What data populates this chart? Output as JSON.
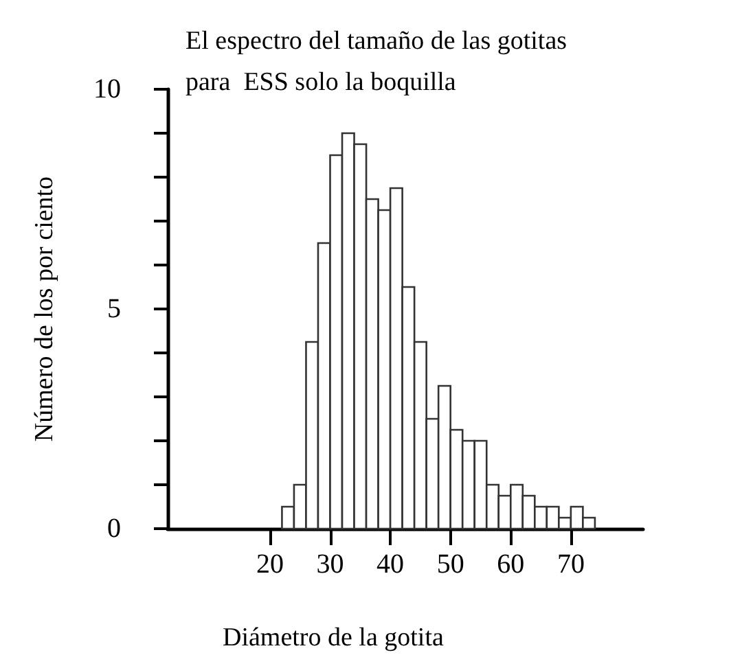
{
  "chart_data": {
    "type": "histogram",
    "title": "El espectro del tamaño de las gotitas\npara  ESS solo la boquilla",
    "xlabel": "Diámetro de la gotita",
    "ylabel": "Número de los por ciento",
    "bins": [
      22,
      24,
      26,
      28,
      30,
      32,
      34,
      36,
      38,
      40,
      42,
      44,
      46,
      48,
      50,
      52,
      54,
      56,
      58,
      60,
      62,
      64,
      66,
      68,
      70,
      72,
      74
    ],
    "values": [
      0.5,
      1,
      4.25,
      6.5,
      8.5,
      9,
      8.75,
      7.5,
      7.25,
      7.75,
      5.5,
      4.25,
      2.5,
      3.25,
      2.25,
      2,
      2,
      1,
      0.75,
      1,
      0.75,
      0.5,
      0.5,
      0.25,
      0.5,
      0.25
    ],
    "color": "#ffffff",
    "xlim": [
      3,
      82
    ],
    "xticks": [
      20,
      30,
      40,
      50,
      60,
      70
    ],
    "ylim": [
      0,
      10
    ],
    "yticks": [
      0,
      {
        "value": 1,
        "label": null
      },
      {
        "value": 2,
        "label": null
      },
      {
        "value": 3,
        "label": null
      },
      {
        "value": 4,
        "label": null
      },
      5,
      {
        "value": 6,
        "label": null
      },
      {
        "value": 7,
        "label": null
      },
      {
        "value": 8,
        "label": null
      },
      {
        "value": 9,
        "label": null
      },
      10
    ],
    "grid": false
  }
}
